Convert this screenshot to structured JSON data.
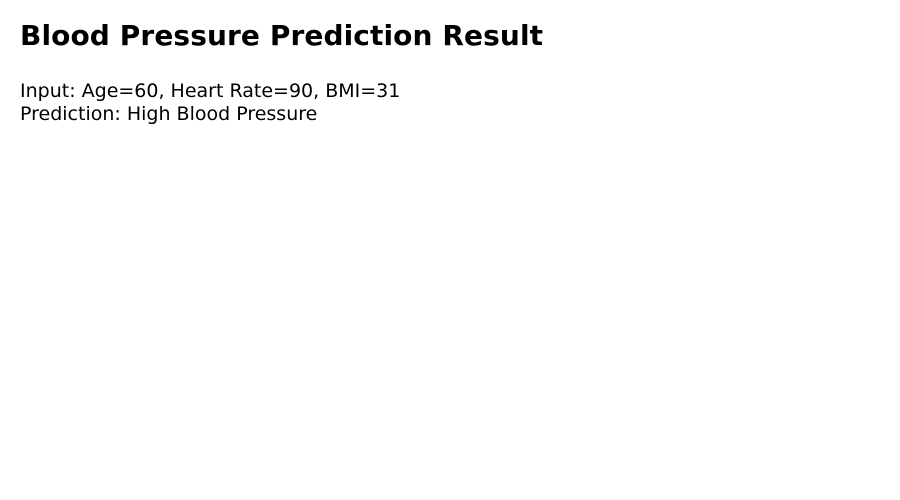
{
  "page": {
    "title": "Blood Pressure Prediction Result"
  },
  "result": {
    "input_text": "Input: Age=60, Heart Rate=90, BMI=31",
    "prediction_text": "Prediction: High Blood Pressure"
  },
  "colors": {
    "background": "#ffffff",
    "text": "#000000"
  }
}
